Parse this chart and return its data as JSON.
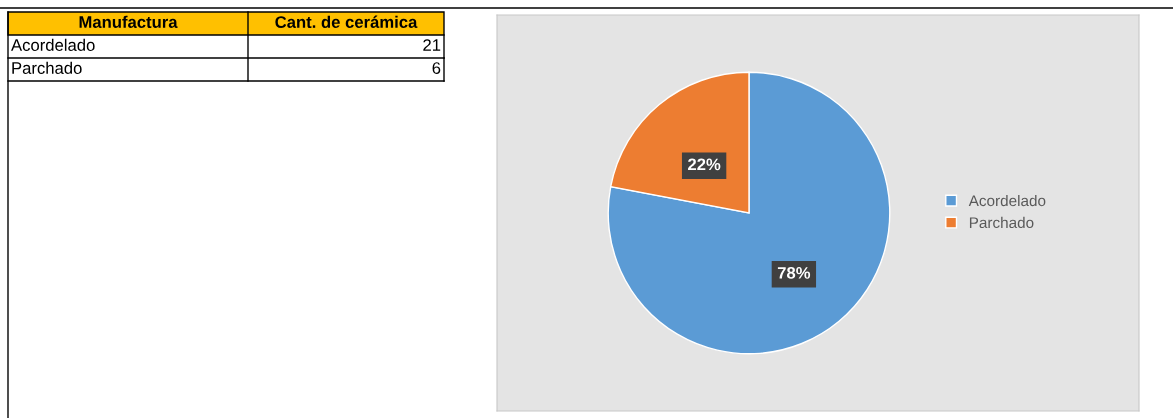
{
  "chart_data": [
    {
      "type": "other",
      "annotations": [
        "Manufactura",
        "Cant. de cerámica"
      ],
      "categories": [
        "Acordelado",
        "Parchado"
      ],
      "values": [
        21,
        6
      ],
      "value_labels": [
        "21",
        "6"
      ]
    },
    {
      "type": "pie",
      "categories": [
        "Acordelado",
        "Parchado"
      ],
      "values": [
        78,
        22
      ],
      "colors": [
        "#5b9bd5",
        "#ed7d31"
      ],
      "value_labels": [
        "78%",
        "22%"
      ],
      "legend": "right"
    }
  ]
}
